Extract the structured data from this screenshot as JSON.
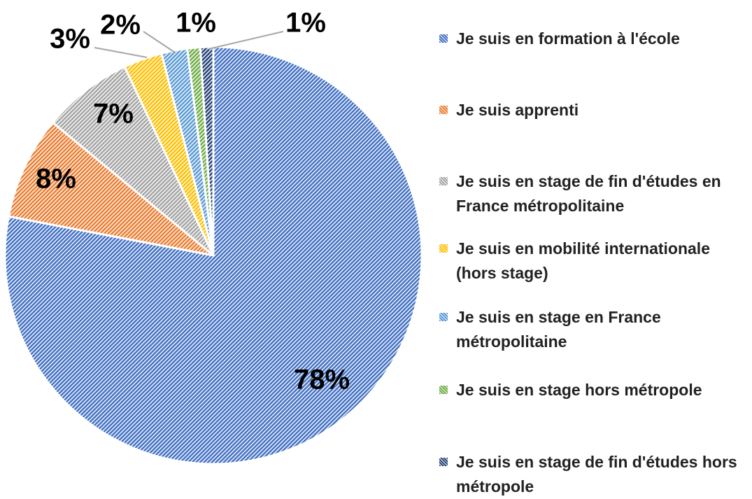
{
  "chart_data": {
    "type": "pie",
    "categories": [
      "Je suis en formation à l'école",
      "Je suis apprenti",
      "Je suis en stage de fin d'études en France métropolitaine",
      "Je suis en mobilité internationale (hors stage)",
      "Je suis en stage en France métropolitaine",
      "Je suis en stage hors métropole",
      "Je suis en stage de fin d'études hors métropole"
    ],
    "values": [
      78,
      8,
      7,
      3,
      2,
      1,
      1
    ],
    "value_labels": [
      "78%",
      "8%",
      "7%",
      "3%",
      "2%",
      "1%",
      "1%"
    ],
    "colors": [
      "#4472c4",
      "#ed7d31",
      "#a5a5a5",
      "#ffc000",
      "#5b9bd5",
      "#70ad47",
      "#264478"
    ],
    "legend": "right"
  }
}
